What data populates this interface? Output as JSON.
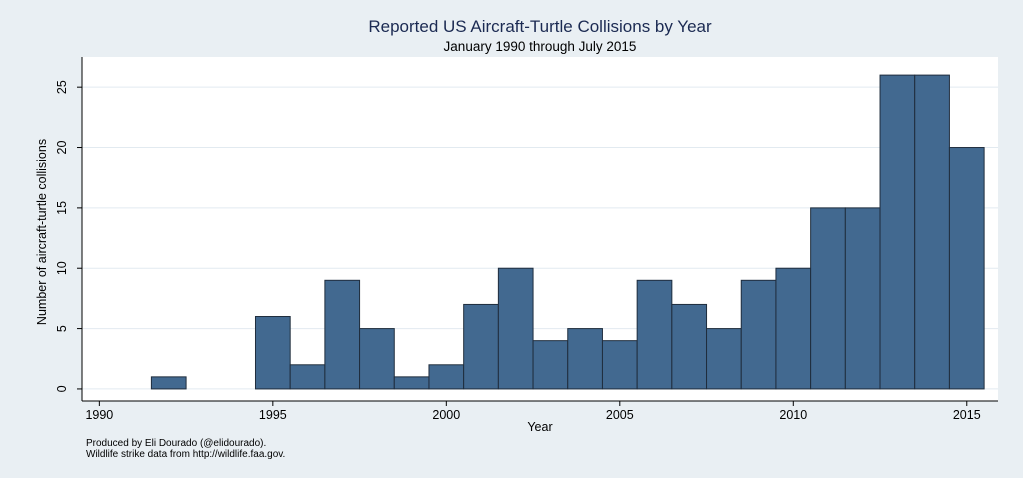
{
  "chart_data": {
    "type": "bar",
    "title": "Reported US Aircraft-Turtle Collisions by Year",
    "subtitle": "January 1990 through July 2015",
    "xlabel": "Year",
    "ylabel": "Number of aircraft-turtle collisions",
    "xlim": [
      1989.5,
      2015.9
    ],
    "ylim": [
      -1,
      27.5
    ],
    "x_ticks": [
      1990,
      1995,
      2000,
      2005,
      2010,
      2015
    ],
    "y_ticks": [
      0,
      5,
      10,
      15,
      20,
      25
    ],
    "grid": true,
    "legend": "none",
    "bar_color": "#426990",
    "bar_outline_color": "#1f2d3d",
    "plot_background": "#ffffff",
    "page_background": "#e9eff3",
    "gridline_color": "#e2eaf0",
    "bars": [
      {
        "x": 1992,
        "value": 1
      },
      {
        "x": 1995,
        "value": 6
      },
      {
        "x": 1996,
        "value": 2
      },
      {
        "x": 1997,
        "value": 9
      },
      {
        "x": 1998,
        "value": 5
      },
      {
        "x": 1999,
        "value": 1
      },
      {
        "x": 2000,
        "value": 2
      },
      {
        "x": 2001,
        "value": 7
      },
      {
        "x": 2002,
        "value": 10
      },
      {
        "x": 2003,
        "value": 4
      },
      {
        "x": 2004,
        "value": 5
      },
      {
        "x": 2005,
        "value": 4
      },
      {
        "x": 2006,
        "value": 9
      },
      {
        "x": 2007,
        "value": 7
      },
      {
        "x": 2008,
        "value": 5
      },
      {
        "x": 2009,
        "value": 9
      },
      {
        "x": 2010,
        "value": 10
      },
      {
        "x": 2011,
        "value": 15
      },
      {
        "x": 2012,
        "value": 15
      },
      {
        "x": 2013,
        "value": 26
      },
      {
        "x": 2014,
        "value": 26
      },
      {
        "x": 2015,
        "value": 20
      }
    ]
  },
  "notes": {
    "line1": "Produced by Eli Dourado (@elidourado).",
    "line2": "Wildlife strike data from http://wildlife.faa.gov."
  }
}
